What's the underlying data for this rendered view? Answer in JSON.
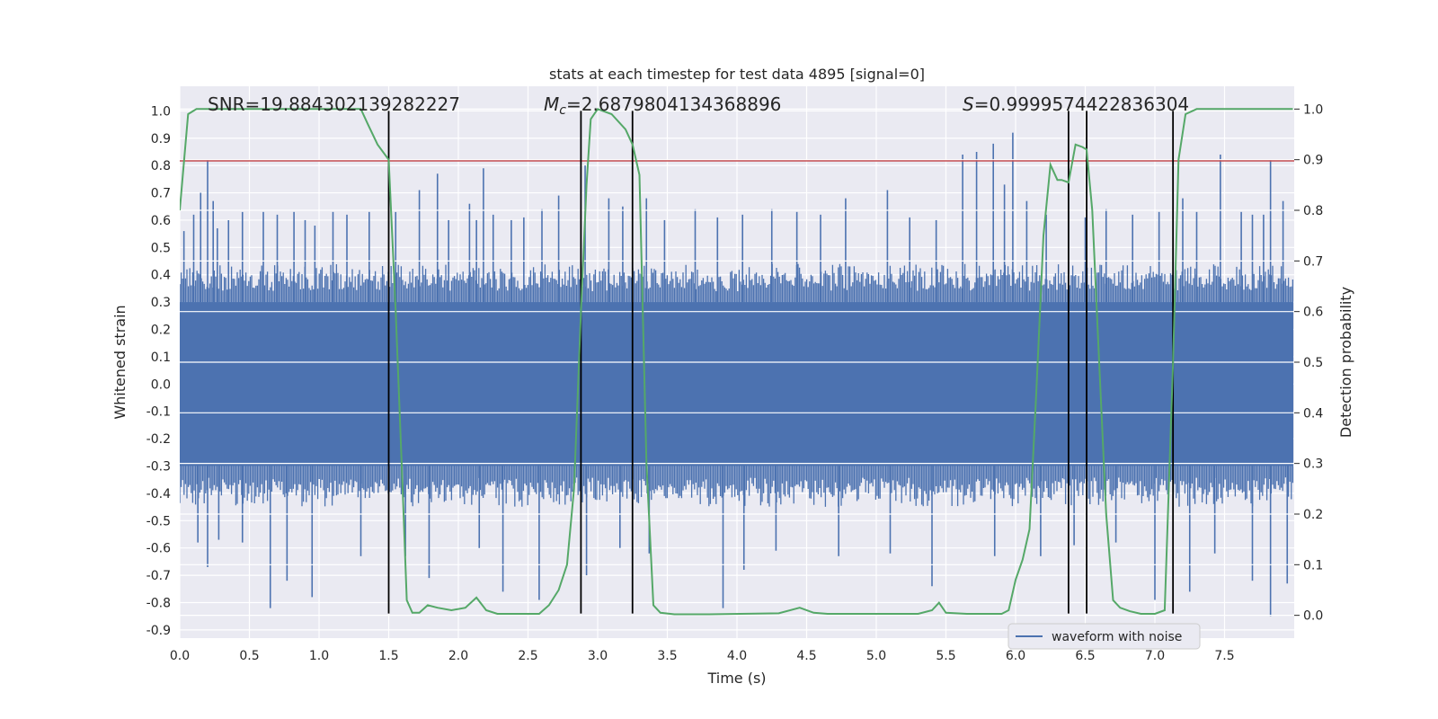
{
  "chart_data": {
    "type": "line",
    "title": "stats at each timestep for test data 4895 [signal=0]",
    "xlabel": "Time (s)",
    "ylabel": "Whitened strain",
    "y2label": "Detection probability",
    "xlim": [
      0.0,
      8.0
    ],
    "ylim": [
      -0.93,
      1.09
    ],
    "y2lim": [
      -0.045,
      1.045
    ],
    "xticks": [
      "0.0",
      "0.5",
      "1.0",
      "1.5",
      "2.0",
      "2.5",
      "3.0",
      "3.5",
      "4.0",
      "4.5",
      "5.0",
      "5.5",
      "6.0",
      "6.5",
      "7.0",
      "7.5"
    ],
    "yticks": [
      "1.0",
      "0.9",
      "0.8",
      "0.7",
      "0.6",
      "0.5",
      "0.4",
      "0.3",
      "0.2",
      "0.1",
      "0.0",
      "-0.1",
      "-0.2",
      "-0.3",
      "-0.4",
      "-0.5",
      "-0.6",
      "-0.7",
      "-0.8",
      "-0.9"
    ],
    "y2ticks": [
      "1.0",
      "0.9",
      "0.8",
      "0.7",
      "0.6",
      "0.5",
      "0.4",
      "0.3",
      "0.2",
      "0.1",
      "0.0"
    ],
    "annotations": {
      "snr": "SNR=19.884302139282227",
      "mc_symbol": "M",
      "mc_sub": "c",
      "mc_value": "=2.6879804134368896",
      "s_symbol": "S",
      "s_value": "=0.9999574422836304"
    },
    "legend": {
      "label": "waveform with noise",
      "location": "lower-right"
    },
    "threshold_line": {
      "axis": "left",
      "value": 0.817,
      "color": "#c44e52"
    },
    "vertical_lines": [
      1.5,
      2.88,
      3.25,
      6.38,
      6.51,
      7.13
    ],
    "vertical_line_extent": [
      -0.84,
      1.0
    ],
    "waveform": {
      "name": "waveform with noise",
      "color": "#4c72b0",
      "t_range": [
        0.0,
        7.99
      ],
      "core_band": [
        -0.3,
        0.3
      ],
      "typical_peak": [
        0.44,
        -0.45
      ],
      "spikes": [
        [
          0.03,
          0.56
        ],
        [
          0.1,
          0.62
        ],
        [
          0.15,
          0.7
        ],
        [
          0.2,
          0.82
        ],
        [
          0.24,
          0.67
        ],
        [
          0.27,
          0.57
        ],
        [
          0.35,
          0.6
        ],
        [
          0.45,
          0.63
        ],
        [
          0.6,
          0.63
        ],
        [
          0.7,
          0.62
        ],
        [
          0.82,
          0.63
        ],
        [
          0.9,
          0.6
        ],
        [
          0.97,
          0.58
        ],
        [
          1.1,
          0.63
        ],
        [
          1.2,
          0.62
        ],
        [
          1.36,
          0.63
        ],
        [
          1.55,
          0.63
        ],
        [
          1.72,
          0.71
        ],
        [
          1.85,
          0.77
        ],
        [
          1.93,
          0.6
        ],
        [
          2.08,
          0.66
        ],
        [
          2.13,
          0.6
        ],
        [
          2.18,
          0.79
        ],
        [
          2.25,
          0.62
        ],
        [
          2.38,
          0.6
        ],
        [
          2.47,
          0.61
        ],
        [
          2.6,
          0.64
        ],
        [
          2.72,
          0.69
        ],
        [
          2.91,
          0.8
        ],
        [
          3.08,
          0.68
        ],
        [
          3.18,
          0.65
        ],
        [
          3.35,
          0.68
        ],
        [
          3.48,
          0.6
        ],
        [
          3.7,
          0.64
        ],
        [
          3.86,
          0.61
        ],
        [
          4.04,
          0.62
        ],
        [
          4.25,
          0.64
        ],
        [
          4.43,
          0.63
        ],
        [
          4.6,
          0.62
        ],
        [
          4.78,
          0.68
        ],
        [
          5.08,
          0.71
        ],
        [
          5.24,
          0.61
        ],
        [
          5.43,
          0.6
        ],
        [
          5.62,
          0.84
        ],
        [
          5.72,
          0.85
        ],
        [
          5.84,
          0.88
        ],
        [
          5.92,
          0.73
        ],
        [
          5.98,
          0.92
        ],
        [
          6.08,
          0.67
        ],
        [
          6.22,
          0.62
        ],
        [
          6.38,
          0.77
        ],
        [
          6.5,
          0.61
        ],
        [
          6.65,
          0.64
        ],
        [
          6.84,
          0.62
        ],
        [
          7.03,
          0.63
        ],
        [
          7.2,
          0.68
        ],
        [
          7.3,
          0.63
        ],
        [
          7.47,
          0.84
        ],
        [
          7.62,
          0.63
        ],
        [
          7.7,
          0.62
        ],
        [
          7.78,
          0.62
        ],
        [
          7.83,
          0.82
        ],
        [
          7.92,
          0.67
        ],
        [
          0.13,
          -0.58
        ],
        [
          0.2,
          -0.67
        ],
        [
          0.28,
          -0.57
        ],
        [
          0.45,
          -0.58
        ],
        [
          0.65,
          -0.82
        ],
        [
          0.77,
          -0.72
        ],
        [
          0.95,
          -0.78
        ],
        [
          1.3,
          -0.63
        ],
        [
          1.62,
          -0.63
        ],
        [
          1.79,
          -0.71
        ],
        [
          2.15,
          -0.6
        ],
        [
          2.32,
          -0.76
        ],
        [
          2.58,
          -0.79
        ],
        [
          2.92,
          -0.7
        ],
        [
          3.16,
          -0.6
        ],
        [
          3.37,
          -0.62
        ],
        [
          3.9,
          -0.82
        ],
        [
          4.05,
          -0.68
        ],
        [
          4.28,
          -0.61
        ],
        [
          4.73,
          -0.63
        ],
        [
          5.1,
          -0.62
        ],
        [
          5.4,
          -0.74
        ],
        [
          5.85,
          -0.63
        ],
        [
          6.18,
          -0.63
        ],
        [
          6.42,
          -0.59
        ],
        [
          6.72,
          -0.58
        ],
        [
          7.0,
          -0.79
        ],
        [
          7.25,
          -0.76
        ],
        [
          7.43,
          -0.62
        ],
        [
          7.7,
          -0.72
        ],
        [
          7.83,
          -0.85
        ],
        [
          7.95,
          -0.73
        ]
      ]
    },
    "detection_probability": {
      "name": "detection probability",
      "axis": "right",
      "color": "#55a868",
      "x": [
        0.0,
        0.06,
        0.12,
        0.2,
        0.5,
        1.0,
        1.3,
        1.35,
        1.42,
        1.5,
        1.55,
        1.6,
        1.63,
        1.67,
        1.72,
        1.78,
        1.85,
        1.95,
        2.05,
        2.13,
        2.2,
        2.28,
        2.38,
        2.48,
        2.58,
        2.65,
        2.72,
        2.78,
        2.83,
        2.88,
        2.92,
        2.95,
        3.0,
        3.1,
        3.2,
        3.25,
        3.3,
        3.35,
        3.4,
        3.45,
        3.55,
        3.8,
        4.3,
        4.45,
        4.55,
        4.65,
        4.8,
        5.3,
        5.4,
        5.45,
        5.5,
        5.65,
        5.9,
        5.95,
        6.0,
        6.05,
        6.1,
        6.15,
        6.2,
        6.25,
        6.3,
        6.33,
        6.38,
        6.43,
        6.48,
        6.51,
        6.55,
        6.6,
        6.65,
        6.7,
        6.75,
        6.82,
        6.9,
        7.0,
        7.07,
        7.13,
        7.17,
        7.22,
        7.3,
        7.5,
        7.99
      ],
      "values": [
        0.8,
        0.99,
        1.0,
        1.0,
        1.0,
        1.0,
        1.0,
        0.97,
        0.93,
        0.9,
        0.6,
        0.25,
        0.03,
        0.005,
        0.005,
        0.02,
        0.015,
        0.01,
        0.015,
        0.035,
        0.01,
        0.003,
        0.003,
        0.003,
        0.003,
        0.02,
        0.05,
        0.1,
        0.25,
        0.6,
        0.85,
        0.98,
        1.0,
        0.99,
        0.96,
        0.93,
        0.87,
        0.3,
        0.02,
        0.005,
        0.002,
        0.002,
        0.004,
        0.015,
        0.005,
        0.003,
        0.003,
        0.003,
        0.01,
        0.025,
        0.005,
        0.003,
        0.003,
        0.01,
        0.07,
        0.11,
        0.17,
        0.45,
        0.75,
        0.89,
        0.86,
        0.86,
        0.855,
        0.93,
        0.925,
        0.92,
        0.8,
        0.5,
        0.2,
        0.03,
        0.015,
        0.008,
        0.003,
        0.003,
        0.01,
        0.5,
        0.9,
        0.99,
        1.0,
        1.0,
        1.0
      ]
    },
    "colors": {
      "background": "#eaeaf2",
      "grid": "#ffffff",
      "vline": "#000000"
    }
  }
}
